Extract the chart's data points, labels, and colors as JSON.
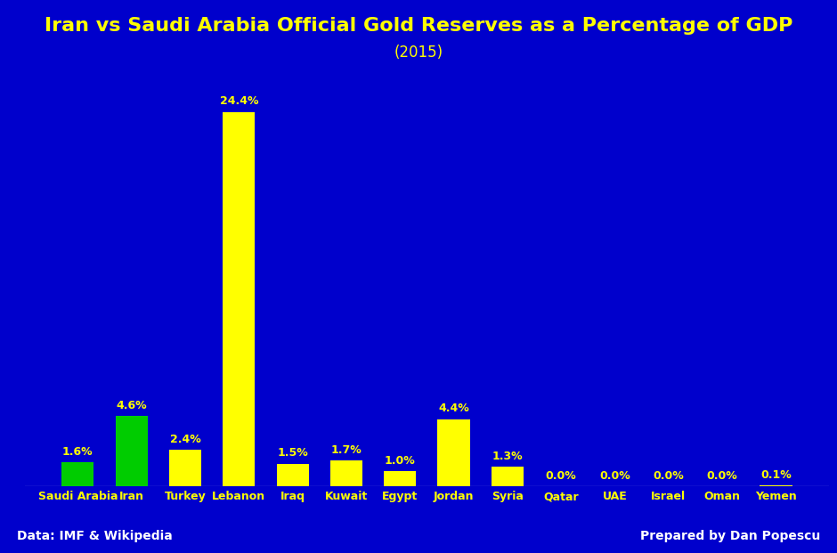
{
  "title": "Iran vs Saudi Arabia Official Gold Reserves as a Percentage of GDP",
  "subtitle": "(2015)",
  "categories": [
    "Saudi Arabia",
    "Iran",
    "Turkey",
    "Lebanon",
    "Iraq",
    "Kuwait",
    "Egypt",
    "Jordan",
    "Syria",
    "Qatar",
    "UAE",
    "Israel",
    "Oman",
    "Yemen"
  ],
  "values": [
    1.6,
    4.6,
    2.4,
    24.4,
    1.5,
    1.7,
    1.0,
    4.4,
    1.3,
    0.0,
    0.0,
    0.0,
    0.0,
    0.1
  ],
  "bar_colors": [
    "#00cc00",
    "#00cc00",
    "#ffff00",
    "#ffff00",
    "#ffff00",
    "#ffff00",
    "#ffff00",
    "#ffff00",
    "#ffff00",
    "#ffff00",
    "#ffff00",
    "#ffff00",
    "#ffff00",
    "#ffff00"
  ],
  "background_color": "#0000cc",
  "title_color": "#ffff00",
  "subtitle_color": "#ffff00",
  "label_color": "#ffff00",
  "bar_label_color": "#ffff00",
  "footer_left": "Data: IMF & Wikipedia",
  "footer_right": "Prepared by Dan Popescu",
  "footer_color": "#ffffff",
  "title_fontsize": 16,
  "subtitle_fontsize": 12,
  "tick_label_fontsize": 9,
  "bar_label_fontsize": 9,
  "footer_fontsize": 10,
  "ylim": [
    0,
    27
  ]
}
